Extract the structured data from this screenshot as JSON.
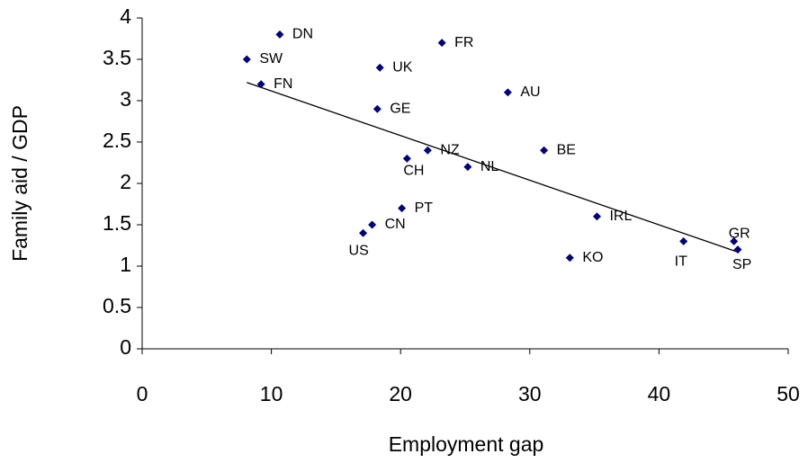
{
  "chart_data": {
    "type": "scatter",
    "x_label": "Employment gap",
    "y_label": "Family aid / GDP",
    "point_labels": [
      "DN",
      "SW",
      "FN",
      "UK",
      "FR",
      "AU",
      "GE",
      "NZ",
      "CH",
      "BE",
      "NL",
      "PT",
      "CN",
      "US",
      "IRL",
      "IT",
      "KO",
      "GR",
      "SP"
    ],
    "x": [
      10.65,
      8.1,
      9.2,
      18.4,
      23.2,
      28.3,
      18.2,
      22.1,
      20.5,
      31.1,
      25.2,
      20.1,
      17.8,
      17.1,
      35.2,
      41.9,
      33.1,
      45.8,
      46.1
    ],
    "values": [
      3.8,
      3.5,
      3.2,
      3.4,
      3.7,
      3.1,
      2.9,
      2.4,
      2.3,
      2.4,
      2.2,
      1.7,
      1.5,
      1.4,
      1.6,
      1.3,
      1.1,
      1.3,
      1.2
    ],
    "color": "#000080",
    "trendline": {
      "x": [
        8.1,
        46.1
      ],
      "y": [
        3.22,
        1.17
      ],
      "color": "#000000"
    },
    "xlim": [
      0,
      50
    ],
    "xticks": [
      0,
      10,
      20,
      30,
      40,
      50
    ],
    "ylim": [
      0,
      4
    ],
    "yticks": [
      0,
      {
        "value": 0.5,
        "label": "0.5"
      },
      1,
      {
        "value": 1.5,
        "label": "1.5"
      },
      2,
      {
        "value": 2.5,
        "label": "2.5"
      },
      3,
      {
        "value": 3.5,
        "label": "3.5"
      },
      4
    ],
    "grid": false
  }
}
